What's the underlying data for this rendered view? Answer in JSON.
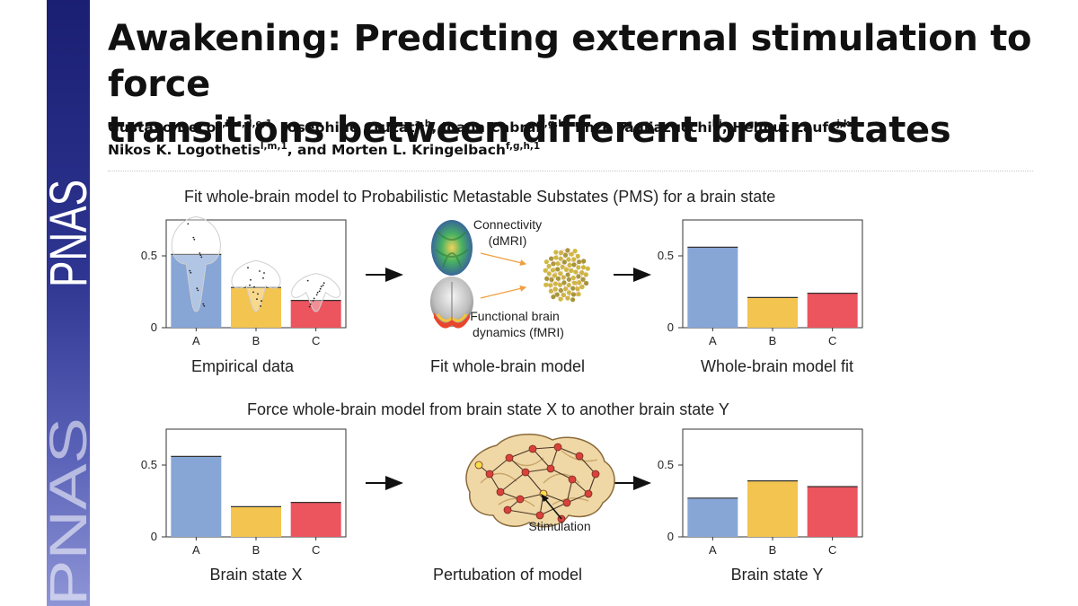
{
  "journal": {
    "logo_text": "PNAS"
  },
  "paper": {
    "title_line1": "Awakening: Predicting external stimulation to force",
    "title_line2": "transitions between different brain states",
    "authors": [
      {
        "name": "Gustavo Deco",
        "sup": "a,b,c,d,e,1",
        "sep": ", "
      },
      {
        "name": "Josephine Cruzat",
        "sup": "a,b",
        "sep": ", "
      },
      {
        "name": "Joana Cabral",
        "sup": "f,g,h",
        "sep": ", "
      },
      {
        "name": "Enzo Tagliazucchi",
        "sup": "i,j",
        "sep": ", "
      },
      {
        "name": "Helmut Laufs",
        "sup": "j,k",
        "sep": ","
      },
      {
        "name": "Nikos K. Logothetis",
        "sup": "l,m,1",
        "sep": ", and "
      },
      {
        "name": "Morten L. Kringelbach",
        "sup": "f,g,h,1",
        "sep": ""
      }
    ]
  },
  "figure": {
    "top_heading": "Fit whole-brain model to Probabilistic Metastable Substates (PMS) for a brain state",
    "bottom_heading": "Force whole-brain model from brain state X to another brain state Y",
    "fit_caption": "Fit whole-brain model",
    "connectivity_label_1": "Connectivity",
    "connectivity_label_2": "(dMRI)",
    "functional_label_1": "Functional brain",
    "functional_label_2": "dynamics (fMRI)",
    "perturbation_caption": "Pertubation of model",
    "stimulation_label": "Stimulation",
    "colors": {
      "A": "#87a6d6",
      "B": "#f3c44f",
      "C": "#ec545e"
    }
  },
  "chart_data": [
    {
      "type": "bar",
      "title": "Empirical data",
      "categories": [
        "A",
        "B",
        "C"
      ],
      "values": [
        0.51,
        0.28,
        0.19
      ],
      "ylim": [
        0,
        0.75
      ],
      "yticks": [
        0,
        0.5
      ],
      "ytick_labels": [
        "0",
        "0.5"
      ],
      "overlay": "violin with scattered data points"
    },
    {
      "type": "bar",
      "title": "Whole-brain model fit",
      "categories": [
        "A",
        "B",
        "C"
      ],
      "values": [
        0.56,
        0.21,
        0.24
      ],
      "ylim": [
        0,
        0.75
      ],
      "yticks": [
        0,
        0.5
      ],
      "ytick_labels": [
        "0",
        "0.5"
      ]
    },
    {
      "type": "bar",
      "title": "Brain state X",
      "categories": [
        "A",
        "B",
        "C"
      ],
      "values": [
        0.56,
        0.21,
        0.24
      ],
      "ylim": [
        0,
        0.75
      ],
      "yticks": [
        0,
        0.5
      ],
      "ytick_labels": [
        "0",
        "0.5"
      ]
    },
    {
      "type": "bar",
      "title": "Brain state Y",
      "categories": [
        "A",
        "B",
        "C"
      ],
      "values": [
        0.27,
        0.39,
        0.35
      ],
      "ylim": [
        0,
        0.75
      ],
      "yticks": [
        0,
        0.5
      ],
      "ytick_labels": [
        "0",
        "0.5"
      ]
    }
  ]
}
